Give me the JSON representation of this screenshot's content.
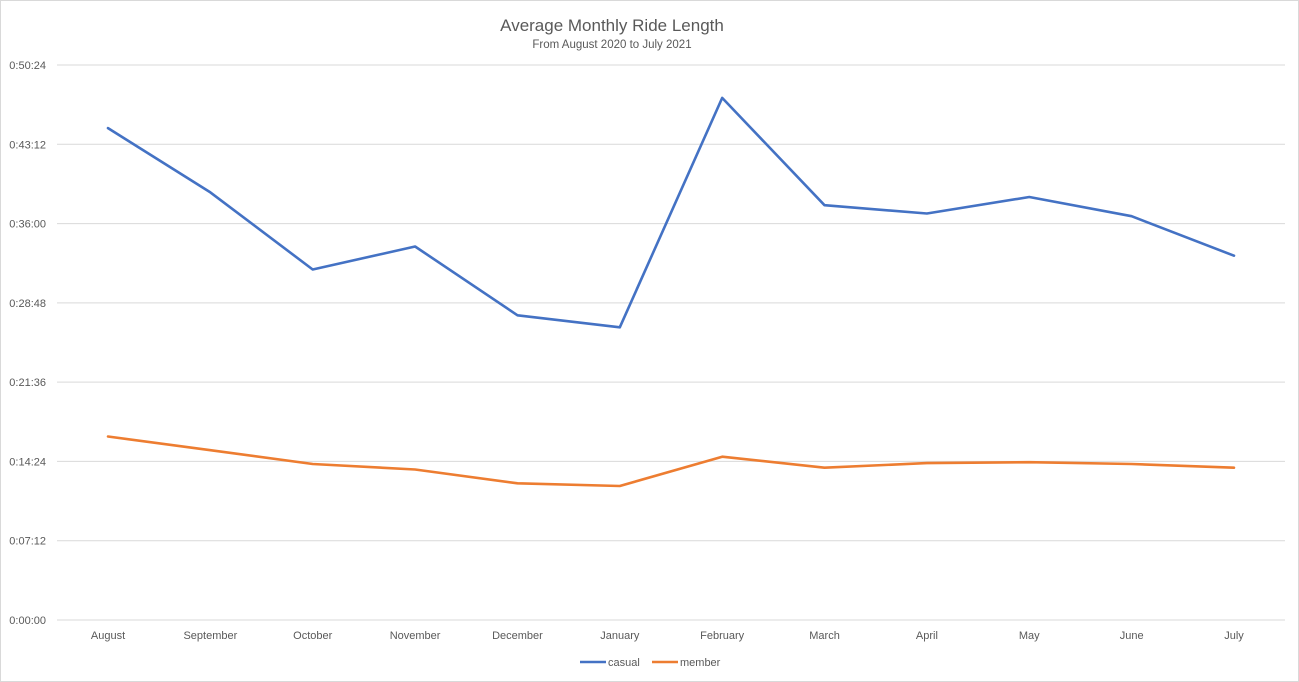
{
  "chart_data": {
    "type": "line",
    "title": "Average Monthly Ride Length",
    "subtitle": "From August 2020 to July 2021",
    "categories": [
      "August",
      "September",
      "October",
      "November",
      "December",
      "January",
      "February",
      "March",
      "April",
      "May",
      "June",
      "July"
    ],
    "y_ticks": [
      "0:00:00",
      "0:07:12",
      "0:14:24",
      "0:21:36",
      "0:28:48",
      "0:36:00",
      "0:43:12",
      "0:50:24"
    ],
    "ylim_seconds": [
      0,
      3024
    ],
    "grid": true,
    "legend_position": "bottom",
    "series": [
      {
        "name": "casual",
        "color": "#4472C4",
        "values_seconds": [
          2680,
          2330,
          1910,
          2035,
          1660,
          1595,
          2845,
          2260,
          2215,
          2305,
          2200,
          1985
        ]
      },
      {
        "name": "member",
        "color": "#ED7D31",
        "values_seconds": [
          1000,
          925,
          850,
          820,
          745,
          730,
          890,
          830,
          855,
          860,
          850,
          830
        ]
      }
    ]
  }
}
